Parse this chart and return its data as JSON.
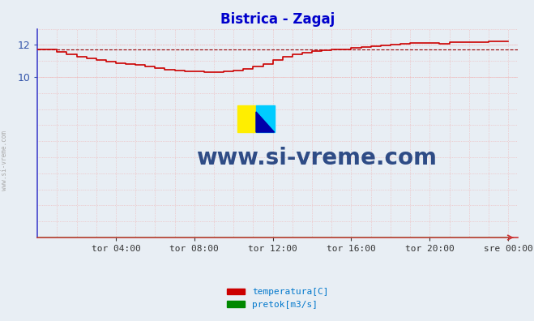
{
  "title": "Bistrica - Zagaj",
  "title_color": "#0000cc",
  "bg_color": "#e8eef4",
  "plot_bg_color": "#e8eef4",
  "xlabel_ticks": [
    "tor 04:00",
    "tor 08:00",
    "tor 12:00",
    "tor 16:00",
    "tor 20:00",
    "sre 00:00"
  ],
  "x_tick_positions": [
    4,
    8,
    12,
    16,
    20,
    24
  ],
  "ylim": [
    0,
    13.0
  ],
  "xlim": [
    0,
    24.5
  ],
  "yticks": [
    10,
    12
  ],
  "avg_line_y": 11.7,
  "avg_line_color": "#990000",
  "temp_line_color": "#cc0000",
  "pretok_line_color": "#008800",
  "watermark_text": "www.si-vreme.com",
  "watermark_color": "#1a3a7a",
  "left_label": "www.si-vreme.com",
  "legend_labels": [
    "temperatura[C]",
    "pretok[m3/s]"
  ],
  "legend_colors": [
    "#cc0000",
    "#008800"
  ],
  "grid_color_h": "#c8d8e8",
  "grid_color_v": "#f0b0b0",
  "spine_color_left": "#4444cc",
  "spine_color_bottom": "#cc3333",
  "temp_data_x": [
    0,
    0.5,
    1.0,
    1.5,
    2.0,
    2.5,
    3.0,
    3.5,
    4.0,
    4.5,
    5.0,
    5.5,
    6.0,
    6.5,
    7.0,
    7.5,
    8.0,
    8.5,
    9.0,
    9.5,
    10.0,
    10.5,
    11.0,
    11.5,
    12.0,
    12.5,
    13.0,
    13.5,
    14.0,
    14.5,
    15.0,
    15.5,
    16.0,
    16.5,
    17.0,
    17.5,
    18.0,
    18.5,
    19.0,
    19.5,
    20.0,
    20.5,
    21.0,
    21.5,
    22.0,
    22.5,
    23.0,
    23.5,
    24.0
  ],
  "temp_data_y": [
    11.72,
    11.72,
    11.55,
    11.42,
    11.28,
    11.15,
    11.05,
    10.95,
    10.88,
    10.82,
    10.75,
    10.65,
    10.55,
    10.48,
    10.42,
    10.38,
    10.35,
    10.33,
    10.33,
    10.36,
    10.42,
    10.52,
    10.65,
    10.82,
    11.08,
    11.25,
    11.42,
    11.52,
    11.6,
    11.66,
    11.7,
    11.74,
    11.8,
    11.85,
    11.9,
    11.95,
    12.0,
    12.05,
    12.1,
    12.1,
    12.1,
    12.08,
    12.18,
    12.18,
    12.15,
    12.18,
    12.2,
    12.2,
    12.2
  ],
  "pretok_data_x": [
    0,
    4,
    8,
    11.5,
    12.0,
    16,
    19.5,
    20.0,
    24
  ],
  "pretok_data_y": [
    0.018,
    0.018,
    0.018,
    0.025,
    0.025,
    0.02,
    0.015,
    0.012,
    0.012
  ]
}
